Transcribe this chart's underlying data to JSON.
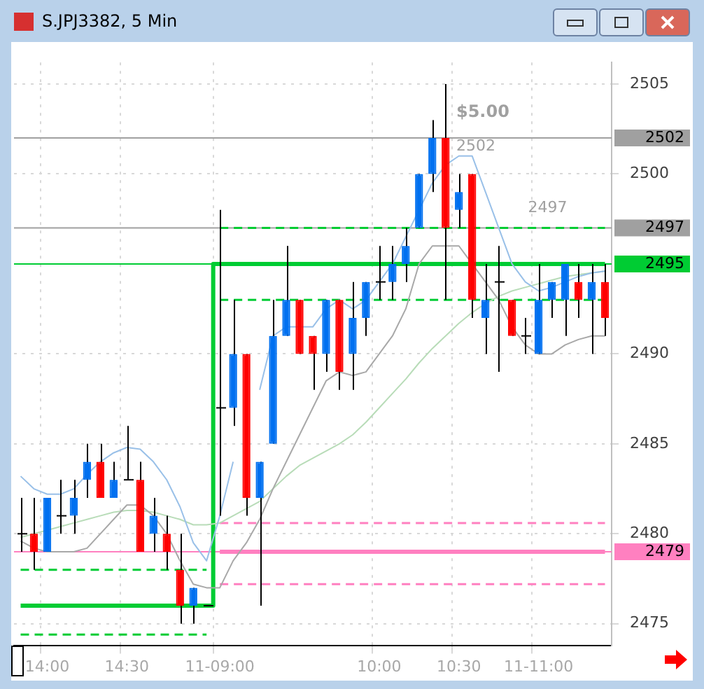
{
  "chart_data": {
    "type": "candlestick",
    "title": "S.JPJ3382, 5 Min",
    "categories": [
      null,
      null,
      "14:00",
      null,
      null,
      null,
      null,
      null,
      "14:30",
      null,
      null,
      null,
      null,
      null,
      null,
      "11-09:00",
      null,
      null,
      null,
      null,
      null,
      null,
      null,
      null,
      null,
      null,
      null,
      "10:00",
      null,
      null,
      null,
      null,
      null,
      "10:30",
      null,
      null,
      null,
      null,
      null,
      "11-11:00",
      null,
      null,
      null,
      null,
      null
    ],
    "ohlc": [
      [
        2480,
        2482,
        2479,
        2480
      ],
      [
        2480,
        2482,
        2478,
        2479
      ],
      [
        2479,
        2482,
        2479,
        2482
      ],
      [
        2481,
        2483,
        2480,
        2481
      ],
      [
        2481,
        2483,
        2480,
        2482
      ],
      [
        2483,
        2485,
        2482,
        2484
      ],
      [
        2484,
        2485,
        2482,
        2482
      ],
      [
        2482,
        2484,
        2482,
        2483
      ],
      [
        2483,
        2486,
        2483,
        2483
      ],
      [
        2483,
        2484,
        2479,
        2479
      ],
      [
        2480,
        2482,
        2479,
        2481
      ],
      [
        2480,
        2481,
        2478,
        2479
      ],
      [
        2478,
        2480,
        2475,
        2476
      ],
      [
        2476,
        2477,
        2475,
        2477
      ],
      [
        2476,
        2476,
        2476,
        2476
      ],
      [
        2487,
        2498,
        2481,
        2487
      ],
      [
        2487,
        2493,
        2486,
        2490
      ],
      [
        2490,
        2490,
        2481,
        2482
      ],
      [
        2482,
        2484,
        2476,
        2484
      ],
      [
        2485,
        2493,
        2485,
        2491
      ],
      [
        2491,
        2496,
        2491,
        2493
      ],
      [
        2493,
        2493,
        2490,
        2490
      ],
      [
        2491,
        2491,
        2488,
        2490
      ],
      [
        2490,
        2493,
        2489,
        2493
      ],
      [
        2493,
        2493,
        2488,
        2489
      ],
      [
        2490,
        2494,
        2488,
        2492
      ],
      [
        2492,
        2494,
        2491,
        2494
      ],
      [
        2494,
        2496,
        2493,
        2494
      ],
      [
        2494,
        2496,
        2493,
        2495
      ],
      [
        2495,
        2497,
        2494,
        2496
      ],
      [
        2497,
        2500,
        2497,
        2500
      ],
      [
        2500,
        2503,
        2499,
        2502
      ],
      [
        2502,
        2505,
        2493,
        2497
      ],
      [
        2498,
        2500,
        2497,
        2499
      ],
      [
        2500,
        2500,
        2492,
        2493
      ],
      [
        2492,
        2495,
        2490,
        2493
      ],
      [
        2494,
        2496,
        2489,
        2494
      ],
      [
        2493,
        2493,
        2491,
        2491
      ],
      [
        2491,
        2492,
        2490,
        2491
      ],
      [
        2490,
        2495,
        2490,
        2493
      ],
      [
        2493,
        2494,
        2492,
        2494
      ],
      [
        2493,
        2495,
        2491,
        2495
      ],
      [
        2494,
        2495,
        2492,
        2493
      ],
      [
        2493,
        2495,
        2490,
        2494
      ],
      [
        2494,
        2495,
        2491,
        2492
      ]
    ],
    "colors": [
      "#000000",
      "#ff0000",
      "#0070f0",
      "#000000",
      "#0070f0",
      "#0070f0",
      "#ff0000",
      "#0070f0",
      "#000000",
      "#ff0000",
      "#0070f0",
      "#ff0000",
      "#ff0000",
      "#0070f0",
      "#000000",
      "#000000",
      "#0070f0",
      "#ff0000",
      "#0070f0",
      "#0070f0",
      "#0070f0",
      "#ff0000",
      "#ff0000",
      "#0070f0",
      "#ff0000",
      "#0070f0",
      "#0070f0",
      "#000000",
      "#0070f0",
      "#0070f0",
      "#0070f0",
      "#0070f0",
      "#ff0000",
      "#0070f0",
      "#ff0000",
      "#0070f0",
      "#000000",
      "#ff0000",
      "#000000",
      "#0070f0",
      "#0070f0",
      "#0070f0",
      "#ff0000",
      "#0070f0",
      "#ff0000"
    ],
    "series": [
      {
        "type": "line",
        "color": "#99c0e8",
        "values": [
          2483.2,
          2482.5,
          2482.2,
          2482.2,
          2482.5,
          2483.3,
          2484,
          2484.5,
          2484.8,
          2484.7,
          2484,
          2483,
          2481.5,
          2479.5,
          2478.5,
          2481,
          2484,
          null,
          2488,
          2491,
          2491.5,
          2491.5,
          2491.5,
          2492.5,
          2493,
          2492.5,
          2493,
          2494,
          2495,
          2496.5,
          2498,
          2499.5,
          2500.5,
          2501,
          2501,
          2499,
          2497,
          2495,
          2494,
          2493.5,
          2493.7,
          2494,
          2494.3,
          2494.5,
          2494.6
        ]
      },
      {
        "type": "line",
        "color": "#a8a8a8",
        "values": [
          2479.6,
          2479.2,
          2479,
          2479,
          2479,
          2479.2,
          2480,
          2480.8,
          2481.6,
          2481.6,
          2481,
          2480,
          2478.5,
          2477.2,
          2477,
          2477,
          2478.5,
          2479.5,
          2480.8,
          2482.5,
          2484,
          2485.5,
          2487,
          2488.5,
          2489,
          2488.8,
          2489,
          2490,
          2491,
          2492.5,
          2495,
          2496,
          2496,
          2496,
          2495,
          2494,
          2493,
          2491.5,
          2490.5,
          2490,
          2490,
          2490.5,
          2490.8,
          2491,
          2491
        ]
      },
      {
        "type": "line",
        "color": "#b8dcb8",
        "values": [
          2479.8,
          2480,
          2480.2,
          2480.4,
          2480.6,
          2480.8,
          2481,
          2481.2,
          2481.3,
          2481.3,
          2481.2,
          2481,
          2480.8,
          2480.5,
          2480.5,
          2480.6,
          2481,
          2481.4,
          2481.8,
          2482.5,
          2483.2,
          2483.8,
          2484.2,
          2484.6,
          2485,
          2485.5,
          2486.2,
          2487,
          2487.8,
          2488.6,
          2489.5,
          2490.3,
          2491,
          2491.7,
          2492.3,
          2492.8,
          2493.2,
          2493.5,
          2493.7,
          2493.9,
          2494.1,
          2494.3,
          2494.4,
          2494.5,
          2494.6
        ]
      },
      {
        "type": "step",
        "color": "#00cc33",
        "values": [
          2476,
          2476,
          2476,
          2476,
          2476,
          2476,
          2476,
          2476,
          2476,
          2476,
          2476,
          2476,
          2476,
          2476,
          2476,
          2495,
          2495,
          2495,
          2495,
          2495,
          2495,
          2495,
          2495,
          2495,
          2495,
          2495,
          2495,
          2495,
          2495,
          2495,
          2495,
          2495,
          2495,
          2495,
          2495,
          2495,
          2495,
          2495,
          2495,
          2495,
          2495,
          2495,
          2495,
          2495,
          2495
        ]
      },
      {
        "type": "step",
        "color": "#ff80c0",
        "values": [
          null,
          null,
          null,
          null,
          null,
          null,
          null,
          null,
          null,
          null,
          null,
          null,
          null,
          null,
          null,
          2479,
          2479,
          2479,
          2479,
          2479,
          2479,
          2479,
          2479,
          2479,
          2479,
          2479,
          2479,
          2479,
          2479,
          2479,
          2479,
          2479,
          2479,
          2479,
          2479,
          2479,
          2479,
          2479,
          2479,
          2479,
          2479,
          2479,
          2479,
          2479,
          2479
        ]
      },
      {
        "type": "line",
        "color": "#00cc33",
        "line_style": "dashed",
        "values": [
          2478,
          2478,
          2478,
          2478,
          2478,
          2478,
          2478,
          2478,
          2478,
          2478,
          2478,
          2478,
          2478,
          2478,
          2478,
          null,
          null,
          null,
          null,
          null,
          null,
          null,
          null,
          null,
          null,
          null,
          null,
          null,
          null,
          null,
          null,
          null,
          null,
          null,
          null,
          null,
          null,
          null,
          null,
          null,
          null,
          null,
          null,
          null,
          null
        ]
      },
      {
        "type": "line",
        "color": "#00cc33",
        "line_style": "dashed",
        "values": [
          2474.4,
          2474.4,
          2474.4,
          2474.4,
          2474.4,
          2474.4,
          2474.4,
          2474.4,
          2474.4,
          2474.4,
          2474.4,
          2474.4,
          2474.4,
          2474.4,
          2474.4,
          null,
          null,
          null,
          null,
          null,
          null,
          null,
          null,
          null,
          null,
          null,
          null,
          null,
          null,
          null,
          null,
          null,
          null,
          null,
          null,
          null,
          null,
          null,
          null,
          null,
          null,
          null,
          null,
          null,
          null
        ]
      },
      {
        "type": "line",
        "color": "#00cc33",
        "line_style": "dashed",
        "values": [
          null,
          null,
          null,
          null,
          null,
          null,
          null,
          null,
          null,
          null,
          null,
          null,
          null,
          null,
          null,
          2497,
          2497,
          2497,
          2497,
          2497,
          2497,
          2497,
          2497,
          2497,
          2497,
          2497,
          2497,
          2497,
          2497,
          2497,
          2497,
          2497,
          2497,
          2497,
          2497,
          2497,
          2497,
          2497,
          2497,
          2497,
          2497,
          2497,
          2497,
          2497,
          2497
        ]
      },
      {
        "type": "line",
        "color": "#00cc33",
        "line_style": "dashed",
        "values": [
          null,
          null,
          null,
          null,
          null,
          null,
          null,
          null,
          null,
          null,
          null,
          null,
          null,
          null,
          null,
          2493,
          2493,
          2493,
          2493,
          2493,
          2493,
          2493,
          2493,
          2493,
          2493,
          2493,
          2493,
          2493,
          2493,
          2493,
          2493,
          2493,
          2493,
          2493,
          2493,
          2493,
          2493,
          2493,
          2493,
          2493,
          2493,
          2493,
          2493,
          2493,
          2493
        ]
      },
      {
        "type": "line",
        "color": "#ff80c0",
        "line_style": "dashed",
        "values": [
          null,
          null,
          null,
          null,
          null,
          null,
          null,
          null,
          null,
          null,
          null,
          null,
          null,
          null,
          null,
          2480.6,
          2480.6,
          2480.6,
          2480.6,
          2480.6,
          2480.6,
          2480.6,
          2480.6,
          2480.6,
          2480.6,
          2480.6,
          2480.6,
          2480.6,
          2480.6,
          2480.6,
          2480.6,
          2480.6,
          2480.6,
          2480.6,
          2480.6,
          2480.6,
          2480.6,
          2480.6,
          2480.6,
          2480.6,
          2480.6,
          2480.6,
          2480.6,
          2480.6,
          2480.6
        ]
      },
      {
        "type": "line",
        "color": "#ff80c0",
        "line_style": "dashed",
        "values": [
          null,
          null,
          null,
          null,
          null,
          null,
          null,
          null,
          null,
          null,
          null,
          null,
          null,
          null,
          null,
          2477.2,
          2477.2,
          2477.2,
          2477.2,
          2477.2,
          2477.2,
          2477.2,
          2477.2,
          2477.2,
          2477.2,
          2477.2,
          2477.2,
          2477.2,
          2477.2,
          2477.2,
          2477.2,
          2477.2,
          2477.2,
          2477.2,
          2477.2,
          2477.2,
          2477.2,
          2477.2,
          2477.2,
          2477.2,
          2477.2,
          2477.2,
          2477.2,
          2477.2,
          2477.2
        ]
      }
    ],
    "ylim": [
      2473.8,
      2506.2
    ],
    "yticks": [
      2475,
      2480,
      2485,
      2490,
      2500,
      2505
    ],
    "grid": true,
    "ref_lines": [
      {
        "axis": "y",
        "value": 2502,
        "label": "2502",
        "color": "#a0a0a0"
      },
      {
        "axis": "y",
        "value": 2497,
        "label": "2497",
        "color": "#a0a0a0"
      },
      {
        "axis": "y",
        "value": 2495,
        "label": "2495",
        "color": "#00cc33"
      },
      {
        "axis": "y",
        "value": 2479,
        "label": "2479",
        "color": "#ff80c0"
      }
    ],
    "annotations": [
      "$5.00",
      "2502",
      "2497"
    ]
  }
}
